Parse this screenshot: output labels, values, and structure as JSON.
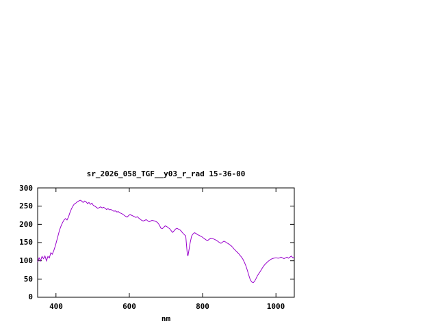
{
  "chart_data": {
    "type": "line",
    "title": "sr_2026_058_TGF__y03_r_rad 15-36-00",
    "xlabel": "nm",
    "ylabel": "",
    "xlim": [
      350,
      1050
    ],
    "ylim": [
      0,
      300
    ],
    "xticks": [
      400,
      600,
      800,
      1000
    ],
    "yticks": [
      0,
      50,
      100,
      150,
      200,
      250,
      300
    ],
    "grid": false,
    "legend": "none",
    "line_color": "#9900cc",
    "series": [
      {
        "name": "sr_2026_058_TGF__y03_r_rad",
        "points": [
          [
            350,
            97
          ],
          [
            354,
            108
          ],
          [
            358,
            100
          ],
          [
            362,
            112
          ],
          [
            366,
            106
          ],
          [
            370,
            113
          ],
          [
            374,
            100
          ],
          [
            378,
            112
          ],
          [
            382,
            108
          ],
          [
            386,
            122
          ],
          [
            390,
            118
          ],
          [
            394,
            128
          ],
          [
            398,
            140
          ],
          [
            402,
            155
          ],
          [
            406,
            170
          ],
          [
            410,
            185
          ],
          [
            414,
            196
          ],
          [
            418,
            205
          ],
          [
            422,
            212
          ],
          [
            426,
            216
          ],
          [
            430,
            212
          ],
          [
            434,
            220
          ],
          [
            438,
            232
          ],
          [
            442,
            242
          ],
          [
            446,
            250
          ],
          [
            450,
            256
          ],
          [
            454,
            258
          ],
          [
            458,
            262
          ],
          [
            462,
            264
          ],
          [
            466,
            266
          ],
          [
            470,
            264
          ],
          [
            474,
            260
          ],
          [
            478,
            264
          ],
          [
            482,
            262
          ],
          [
            486,
            257
          ],
          [
            490,
            260
          ],
          [
            494,
            255
          ],
          [
            498,
            258
          ],
          [
            502,
            252
          ],
          [
            506,
            250
          ],
          [
            510,
            247
          ],
          [
            514,
            244
          ],
          [
            518,
            246
          ],
          [
            522,
            248
          ],
          [
            526,
            245
          ],
          [
            530,
            247
          ],
          [
            534,
            244
          ],
          [
            538,
            241
          ],
          [
            542,
            243
          ],
          [
            546,
            240
          ],
          [
            550,
            241
          ],
          [
            554,
            238
          ],
          [
            558,
            236
          ],
          [
            562,
            237
          ],
          [
            566,
            234
          ],
          [
            570,
            235
          ],
          [
            574,
            232
          ],
          [
            578,
            230
          ],
          [
            582,
            228
          ],
          [
            586,
            225
          ],
          [
            590,
            222
          ],
          [
            594,
            220
          ],
          [
            598,
            224
          ],
          [
            602,
            227
          ],
          [
            606,
            225
          ],
          [
            610,
            223
          ],
          [
            614,
            221
          ],
          [
            618,
            219
          ],
          [
            622,
            221
          ],
          [
            626,
            217
          ],
          [
            630,
            214
          ],
          [
            634,
            211
          ],
          [
            638,
            209
          ],
          [
            642,
            211
          ],
          [
            646,
            213
          ],
          [
            650,
            210
          ],
          [
            654,
            207
          ],
          [
            658,
            209
          ],
          [
            662,
            211
          ],
          [
            666,
            210
          ],
          [
            670,
            209
          ],
          [
            674,
            207
          ],
          [
            678,
            204
          ],
          [
            682,
            198
          ],
          [
            686,
            190
          ],
          [
            690,
            188
          ],
          [
            694,
            192
          ],
          [
            698,
            196
          ],
          [
            702,
            194
          ],
          [
            706,
            191
          ],
          [
            710,
            188
          ],
          [
            714,
            183
          ],
          [
            718,
            178
          ],
          [
            722,
            182
          ],
          [
            726,
            187
          ],
          [
            730,
            189
          ],
          [
            734,
            187
          ],
          [
            738,
            185
          ],
          [
            742,
            181
          ],
          [
            746,
            176
          ],
          [
            750,
            172
          ],
          [
            754,
            168
          ],
          [
            758,
            120
          ],
          [
            760,
            113
          ],
          [
            762,
            125
          ],
          [
            766,
            150
          ],
          [
            770,
            168
          ],
          [
            774,
            174
          ],
          [
            778,
            177
          ],
          [
            782,
            175
          ],
          [
            786,
            172
          ],
          [
            790,
            170
          ],
          [
            794,
            168
          ],
          [
            798,
            166
          ],
          [
            802,
            163
          ],
          [
            806,
            160
          ],
          [
            810,
            157
          ],
          [
            814,
            156
          ],
          [
            818,
            159
          ],
          [
            822,
            162
          ],
          [
            826,
            161
          ],
          [
            830,
            160
          ],
          [
            834,
            158
          ],
          [
            838,
            156
          ],
          [
            842,
            153
          ],
          [
            846,
            150
          ],
          [
            850,
            148
          ],
          [
            854,
            151
          ],
          [
            858,
            154
          ],
          [
            862,
            152
          ],
          [
            866,
            149
          ],
          [
            870,
            147
          ],
          [
            874,
            144
          ],
          [
            878,
            141
          ],
          [
            882,
            137
          ],
          [
            886,
            132
          ],
          [
            890,
            128
          ],
          [
            894,
            124
          ],
          [
            898,
            120
          ],
          [
            902,
            115
          ],
          [
            906,
            110
          ],
          [
            910,
            104
          ],
          [
            914,
            96
          ],
          [
            918,
            86
          ],
          [
            922,
            74
          ],
          [
            926,
            60
          ],
          [
            930,
            48
          ],
          [
            934,
            42
          ],
          [
            938,
            40
          ],
          [
            942,
            44
          ],
          [
            946,
            52
          ],
          [
            950,
            60
          ],
          [
            954,
            66
          ],
          [
            958,
            72
          ],
          [
            962,
            79
          ],
          [
            966,
            85
          ],
          [
            970,
            90
          ],
          [
            974,
            94
          ],
          [
            978,
            98
          ],
          [
            982,
            101
          ],
          [
            986,
            104
          ],
          [
            990,
            106
          ],
          [
            994,
            107
          ],
          [
            998,
            108
          ],
          [
            1002,
            108
          ],
          [
            1006,
            107
          ],
          [
            1010,
            108
          ],
          [
            1014,
            110
          ],
          [
            1018,
            108
          ],
          [
            1022,
            106
          ],
          [
            1026,
            108
          ],
          [
            1030,
            110
          ],
          [
            1034,
            107
          ],
          [
            1038,
            110
          ],
          [
            1042,
            113
          ],
          [
            1046,
            108
          ],
          [
            1050,
            110
          ]
        ]
      }
    ]
  }
}
